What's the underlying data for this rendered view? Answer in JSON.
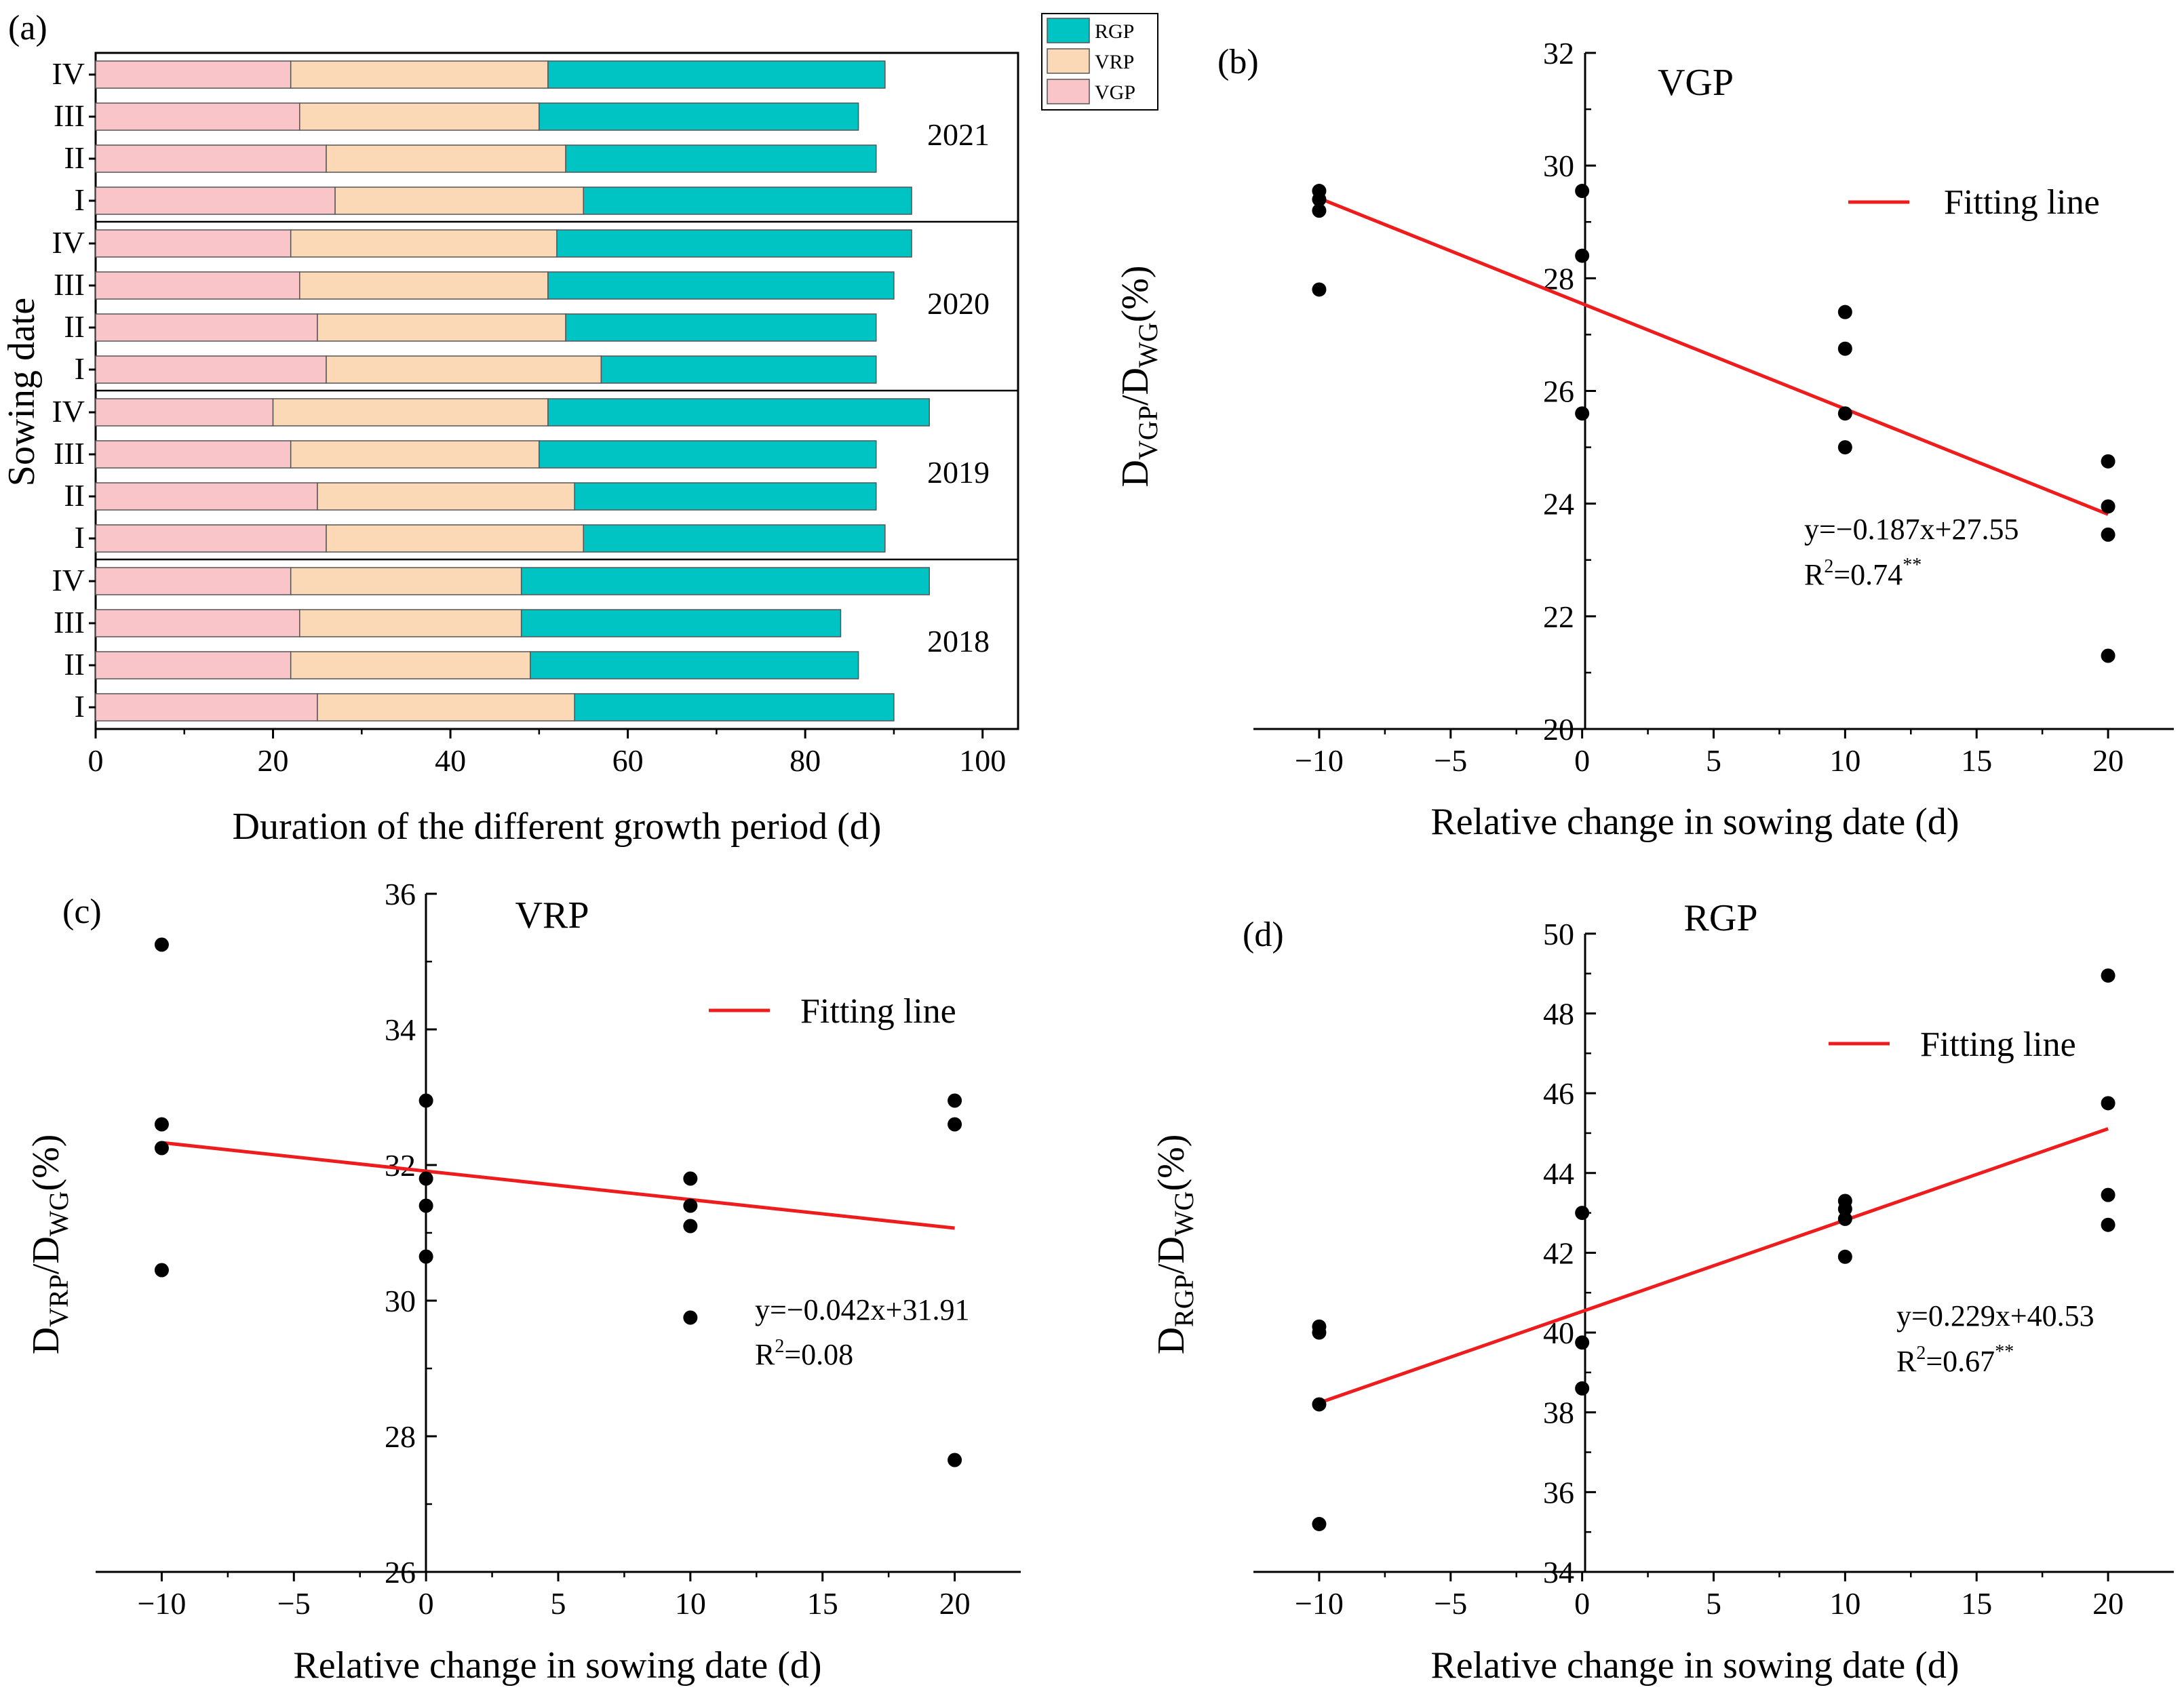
{
  "chart_data": [
    {
      "id": "a",
      "type": "bar",
      "stacked": true,
      "orientation": "horizontal",
      "panel_label": "(a)",
      "xlabel": "Duration of the different growth period (d)",
      "ylabel": "Sowing date",
      "xlim": [
        0,
        104
      ],
      "xticks": [
        0,
        20,
        40,
        60,
        80,
        100
      ],
      "legend": [
        "RGP",
        "VRP",
        "VGP"
      ],
      "colors": {
        "VGP": "#f9c5c8",
        "VRP": "#fbd9b7",
        "RGP": "#00c4c4"
      },
      "groups": [
        {
          "year": "2021",
          "rows": [
            {
              "label": "IV",
              "VGP": 22,
              "VRP": 29,
              "RGP": 38
            },
            {
              "label": "III",
              "VGP": 23,
              "VRP": 27,
              "RGP": 36
            },
            {
              "label": "II",
              "VGP": 26,
              "VRP": 27,
              "RGP": 35
            },
            {
              "label": "I",
              "VGP": 27,
              "VRP": 28,
              "RGP": 37
            }
          ]
        },
        {
          "year": "2020",
          "rows": [
            {
              "label": "IV",
              "VGP": 22,
              "VRP": 30,
              "RGP": 40
            },
            {
              "label": "III",
              "VGP": 23,
              "VRP": 28,
              "RGP": 39
            },
            {
              "label": "II",
              "VGP": 25,
              "VRP": 28,
              "RGP": 35
            },
            {
              "label": "I",
              "VGP": 26,
              "VRP": 31,
              "RGP": 31
            }
          ]
        },
        {
          "year": "2019",
          "rows": [
            {
              "label": "IV",
              "VGP": 20,
              "VRP": 31,
              "RGP": 43
            },
            {
              "label": "III",
              "VGP": 22,
              "VRP": 28,
              "RGP": 38
            },
            {
              "label": "II",
              "VGP": 25,
              "VRP": 29,
              "RGP": 34
            },
            {
              "label": "I",
              "VGP": 26,
              "VRP": 29,
              "RGP": 34
            }
          ]
        },
        {
          "year": "2018",
          "rows": [
            {
              "label": "IV",
              "VGP": 22,
              "VRP": 26,
              "RGP": 46
            },
            {
              "label": "III",
              "VGP": 23,
              "VRP": 25,
              "RGP": 36
            },
            {
              "label": "II",
              "VGP": 22,
              "VRP": 27,
              "RGP": 37
            },
            {
              "label": "I",
              "VGP": 25,
              "VRP": 29,
              "RGP": 36
            }
          ]
        }
      ]
    },
    {
      "id": "b",
      "type": "scatter",
      "panel_label": "(b)",
      "title": "VGP",
      "xlabel": "Relative change in sowing date (d)",
      "ylabel_main": "D",
      "ylabel_sub1": "VGP",
      "ylabel_mid": "/D",
      "ylabel_sub2": "WG",
      "ylabel_end": "(%)",
      "xlim": [
        -12.5,
        22.5
      ],
      "ylim": [
        20,
        32
      ],
      "xticks": [
        -10,
        -5,
        0,
        5,
        10,
        15,
        20
      ],
      "yticks": [
        20,
        22,
        24,
        26,
        28,
        30,
        32
      ],
      "x": [
        -10,
        -10,
        -10,
        -10,
        0,
        0,
        0,
        10,
        10,
        10,
        10,
        20,
        20,
        20,
        20
      ],
      "y": [
        29.55,
        29.4,
        29.2,
        27.8,
        29.55,
        28.4,
        25.6,
        27.4,
        26.75,
        25.6,
        25.0,
        24.75,
        23.95,
        23.45,
        21.3
      ],
      "fit": {
        "slope": -0.187,
        "intercept": 27.55,
        "x_range": [
          -10,
          20
        ],
        "label": "Fitting line"
      },
      "equation": "y=−0.187x+27.55",
      "r2_prefix": "R",
      "r2_exp": "2",
      "r2_value": "=0.74",
      "r2_sig": "**"
    },
    {
      "id": "c",
      "type": "scatter",
      "panel_label": "(c)",
      "title": "VRP",
      "xlabel": "Relative change in sowing date (d)",
      "ylabel_main": "D",
      "ylabel_sub1": "VRP",
      "ylabel_mid": "/D",
      "ylabel_sub2": "WG",
      "ylabel_end": "(%)",
      "xlim": [
        -12.5,
        22.5
      ],
      "ylim": [
        26,
        36
      ],
      "xticks": [
        -10,
        -5,
        0,
        5,
        10,
        15,
        20
      ],
      "yticks": [
        26,
        28,
        30,
        32,
        34,
        36
      ],
      "x": [
        -10,
        -10,
        -10,
        -10,
        0,
        0,
        0,
        0,
        10,
        10,
        10,
        10,
        20,
        20,
        20
      ],
      "y": [
        35.25,
        32.6,
        32.25,
        30.45,
        32.95,
        31.8,
        31.4,
        30.65,
        31.8,
        31.4,
        31.1,
        29.75,
        32.95,
        32.6,
        27.65
      ],
      "fit": {
        "slope": -0.042,
        "intercept": 31.91,
        "x_range": [
          -10,
          20
        ],
        "label": "Fitting line"
      },
      "equation": "y=−0.042x+31.91",
      "r2_prefix": "R",
      "r2_exp": "2",
      "r2_value": "=0.08",
      "r2_sig": ""
    },
    {
      "id": "d",
      "type": "scatter",
      "panel_label": "(d)",
      "title": "RGP",
      "xlabel": "Relative change in sowing date (d)",
      "ylabel_main": "D",
      "ylabel_sub1": "RGP",
      "ylabel_mid": "/D",
      "ylabel_sub2": "WG",
      "ylabel_end": "(%)",
      "xlim": [
        -12.5,
        22.5
      ],
      "ylim": [
        34,
        51
      ],
      "xticks": [
        -10,
        -5,
        0,
        5,
        10,
        15,
        20
      ],
      "yticks": [
        34,
        36,
        38,
        40,
        42,
        44,
        46,
        48,
        50
      ],
      "x": [
        -10,
        -10,
        -10,
        -10,
        0,
        0,
        0,
        10,
        10,
        10,
        10,
        20,
        20,
        20,
        20
      ],
      "y": [
        40.15,
        40.0,
        38.2,
        35.2,
        43.0,
        39.75,
        38.6,
        43.3,
        43.1,
        42.85,
        41.9,
        48.95,
        45.75,
        43.45,
        42.7
      ],
      "fit": {
        "slope": 0.229,
        "intercept": 40.53,
        "x_range": [
          -10,
          20
        ],
        "label": "Fitting line"
      },
      "equation": "y=0.229x+40.53",
      "r2_prefix": "R",
      "r2_exp": "2",
      "r2_value": "=0.67",
      "r2_sig": "**"
    }
  ]
}
